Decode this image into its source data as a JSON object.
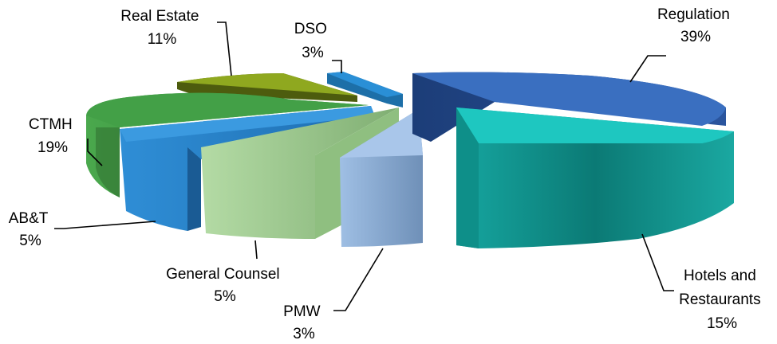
{
  "chart_data": {
    "type": "pie",
    "style": "3d-exploded",
    "slices": [
      {
        "category": "Regulation",
        "value": 39,
        "pct_label": "39%",
        "color": "#3a6fc0"
      },
      {
        "category": "Hotels and Restaurants",
        "value": 15,
        "pct_label": "15%",
        "color": "#14b8b0"
      },
      {
        "category": "PMW",
        "value": 3,
        "pct_label": "3%",
        "color": "#8fb2dc"
      },
      {
        "category": "General Counsel",
        "value": 5,
        "pct_label": "5%",
        "color": "#a8d39a"
      },
      {
        "category": "AB&T",
        "value": 5,
        "pct_label": "5%",
        "color": "#2f8ed6"
      },
      {
        "category": "CTMH",
        "value": 19,
        "pct_label": "19%",
        "color": "#43a047"
      },
      {
        "category": "Real Estate",
        "value": 11,
        "pct_label": "11%",
        "color": "#8fa81f"
      },
      {
        "category": "DSO",
        "value": 3,
        "pct_label": "3%",
        "color": "#2a8fd6"
      }
    ],
    "labels": [
      {
        "lines": [
          "Regulation",
          "39%"
        ]
      },
      {
        "lines": [
          "Hotels and",
          "Restaurants",
          "15%"
        ]
      },
      {
        "lines": [
          "PMW",
          "3%"
        ]
      },
      {
        "lines": [
          "General Counsel",
          "5%"
        ]
      },
      {
        "lines": [
          "AB&T",
          "5%"
        ]
      },
      {
        "lines": [
          "CTMH",
          "19%"
        ]
      },
      {
        "lines": [
          "Real Estate",
          "11%"
        ]
      },
      {
        "lines": [
          "DSO",
          "3%"
        ]
      }
    ]
  }
}
